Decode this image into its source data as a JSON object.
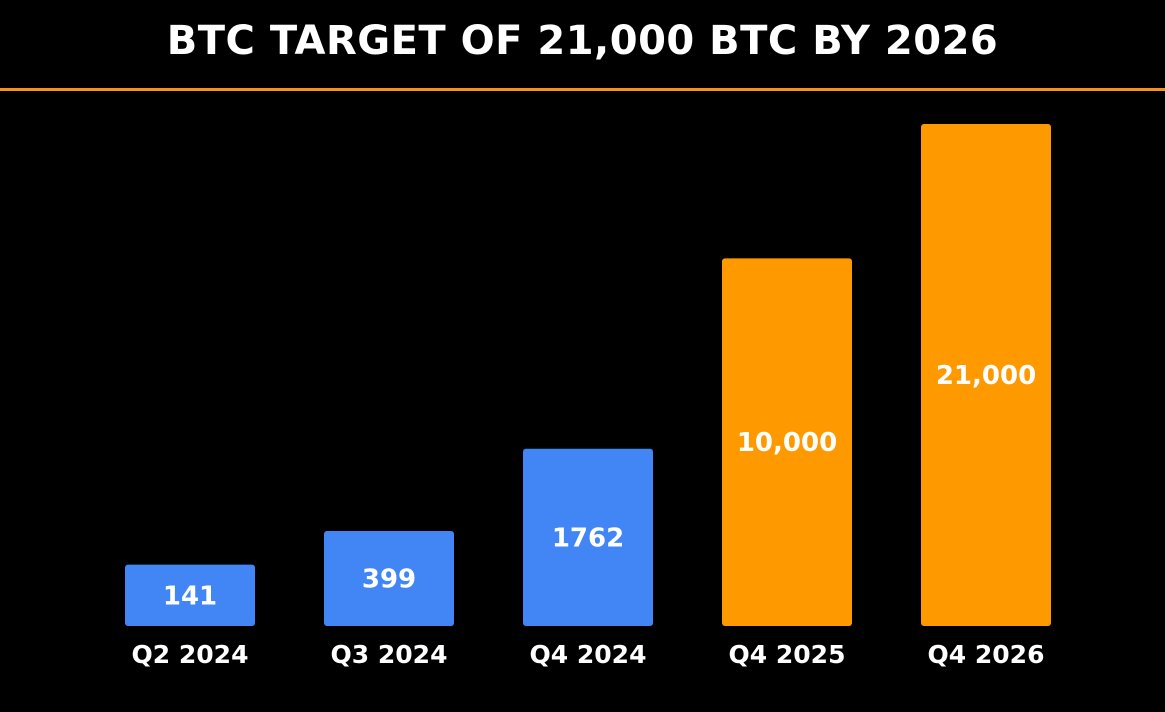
{
  "title": "BTC TARGET OF 21,000 BTC BY 2026",
  "colors": {
    "background": "#000000",
    "divider": "#f7931a",
    "actual": "#4285f4",
    "target": "#ff9900",
    "text": "#ffffff"
  },
  "chart_data": {
    "type": "bar",
    "categories": [
      "Q2 2024",
      "Q3 2024",
      "Q4 2024",
      "Q4 2025",
      "Q4 2026"
    ],
    "values": [
      141,
      399,
      1762,
      10000,
      21000
    ],
    "data_labels": [
      "141",
      "399",
      "1762",
      "10,000",
      "21,000"
    ],
    "bar_colors": [
      "#4285f4",
      "#4285f4",
      "#4285f4",
      "#ff9900",
      "#ff9900"
    ],
    "title": "BTC TARGET OF 21,000 BTC BY 2026",
    "xlabel": "",
    "ylabel": "",
    "grid": false,
    "legend": "none",
    "scale": "non-linear (not proportional)"
  }
}
